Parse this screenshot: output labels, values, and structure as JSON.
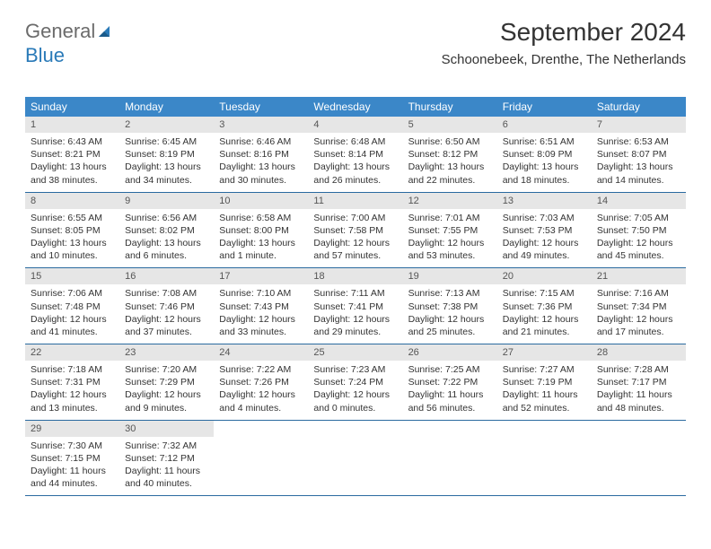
{
  "logo": {
    "text1": "General",
    "text2": "Blue"
  },
  "header": {
    "month_title": "September 2024",
    "location": "Schoonebeek, Drenthe, The Netherlands"
  },
  "colors": {
    "header_bg": "#3b87c8",
    "day_num_bg": "#e6e6e6",
    "row_border": "#2a6aa0",
    "logo_gray": "#6b6b6b",
    "logo_blue": "#2a7ab8"
  },
  "day_headers": [
    "Sunday",
    "Monday",
    "Tuesday",
    "Wednesday",
    "Thursday",
    "Friday",
    "Saturday"
  ],
  "weeks": [
    {
      "nums": [
        "1",
        "2",
        "3",
        "4",
        "5",
        "6",
        "7"
      ],
      "cells": [
        {
          "sunrise": "Sunrise: 6:43 AM",
          "sunset": "Sunset: 8:21 PM",
          "day1": "Daylight: 13 hours",
          "day2": "and 38 minutes."
        },
        {
          "sunrise": "Sunrise: 6:45 AM",
          "sunset": "Sunset: 8:19 PM",
          "day1": "Daylight: 13 hours",
          "day2": "and 34 minutes."
        },
        {
          "sunrise": "Sunrise: 6:46 AM",
          "sunset": "Sunset: 8:16 PM",
          "day1": "Daylight: 13 hours",
          "day2": "and 30 minutes."
        },
        {
          "sunrise": "Sunrise: 6:48 AM",
          "sunset": "Sunset: 8:14 PM",
          "day1": "Daylight: 13 hours",
          "day2": "and 26 minutes."
        },
        {
          "sunrise": "Sunrise: 6:50 AM",
          "sunset": "Sunset: 8:12 PM",
          "day1": "Daylight: 13 hours",
          "day2": "and 22 minutes."
        },
        {
          "sunrise": "Sunrise: 6:51 AM",
          "sunset": "Sunset: 8:09 PM",
          "day1": "Daylight: 13 hours",
          "day2": "and 18 minutes."
        },
        {
          "sunrise": "Sunrise: 6:53 AM",
          "sunset": "Sunset: 8:07 PM",
          "day1": "Daylight: 13 hours",
          "day2": "and 14 minutes."
        }
      ]
    },
    {
      "nums": [
        "8",
        "9",
        "10",
        "11",
        "12",
        "13",
        "14"
      ],
      "cells": [
        {
          "sunrise": "Sunrise: 6:55 AM",
          "sunset": "Sunset: 8:05 PM",
          "day1": "Daylight: 13 hours",
          "day2": "and 10 minutes."
        },
        {
          "sunrise": "Sunrise: 6:56 AM",
          "sunset": "Sunset: 8:02 PM",
          "day1": "Daylight: 13 hours",
          "day2": "and 6 minutes."
        },
        {
          "sunrise": "Sunrise: 6:58 AM",
          "sunset": "Sunset: 8:00 PM",
          "day1": "Daylight: 13 hours",
          "day2": "and 1 minute."
        },
        {
          "sunrise": "Sunrise: 7:00 AM",
          "sunset": "Sunset: 7:58 PM",
          "day1": "Daylight: 12 hours",
          "day2": "and 57 minutes."
        },
        {
          "sunrise": "Sunrise: 7:01 AM",
          "sunset": "Sunset: 7:55 PM",
          "day1": "Daylight: 12 hours",
          "day2": "and 53 minutes."
        },
        {
          "sunrise": "Sunrise: 7:03 AM",
          "sunset": "Sunset: 7:53 PM",
          "day1": "Daylight: 12 hours",
          "day2": "and 49 minutes."
        },
        {
          "sunrise": "Sunrise: 7:05 AM",
          "sunset": "Sunset: 7:50 PM",
          "day1": "Daylight: 12 hours",
          "day2": "and 45 minutes."
        }
      ]
    },
    {
      "nums": [
        "15",
        "16",
        "17",
        "18",
        "19",
        "20",
        "21"
      ],
      "cells": [
        {
          "sunrise": "Sunrise: 7:06 AM",
          "sunset": "Sunset: 7:48 PM",
          "day1": "Daylight: 12 hours",
          "day2": "and 41 minutes."
        },
        {
          "sunrise": "Sunrise: 7:08 AM",
          "sunset": "Sunset: 7:46 PM",
          "day1": "Daylight: 12 hours",
          "day2": "and 37 minutes."
        },
        {
          "sunrise": "Sunrise: 7:10 AM",
          "sunset": "Sunset: 7:43 PM",
          "day1": "Daylight: 12 hours",
          "day2": "and 33 minutes."
        },
        {
          "sunrise": "Sunrise: 7:11 AM",
          "sunset": "Sunset: 7:41 PM",
          "day1": "Daylight: 12 hours",
          "day2": "and 29 minutes."
        },
        {
          "sunrise": "Sunrise: 7:13 AM",
          "sunset": "Sunset: 7:38 PM",
          "day1": "Daylight: 12 hours",
          "day2": "and 25 minutes."
        },
        {
          "sunrise": "Sunrise: 7:15 AM",
          "sunset": "Sunset: 7:36 PM",
          "day1": "Daylight: 12 hours",
          "day2": "and 21 minutes."
        },
        {
          "sunrise": "Sunrise: 7:16 AM",
          "sunset": "Sunset: 7:34 PM",
          "day1": "Daylight: 12 hours",
          "day2": "and 17 minutes."
        }
      ]
    },
    {
      "nums": [
        "22",
        "23",
        "24",
        "25",
        "26",
        "27",
        "28"
      ],
      "cells": [
        {
          "sunrise": "Sunrise: 7:18 AM",
          "sunset": "Sunset: 7:31 PM",
          "day1": "Daylight: 12 hours",
          "day2": "and 13 minutes."
        },
        {
          "sunrise": "Sunrise: 7:20 AM",
          "sunset": "Sunset: 7:29 PM",
          "day1": "Daylight: 12 hours",
          "day2": "and 9 minutes."
        },
        {
          "sunrise": "Sunrise: 7:22 AM",
          "sunset": "Sunset: 7:26 PM",
          "day1": "Daylight: 12 hours",
          "day2": "and 4 minutes."
        },
        {
          "sunrise": "Sunrise: 7:23 AM",
          "sunset": "Sunset: 7:24 PM",
          "day1": "Daylight: 12 hours",
          "day2": "and 0 minutes."
        },
        {
          "sunrise": "Sunrise: 7:25 AM",
          "sunset": "Sunset: 7:22 PM",
          "day1": "Daylight: 11 hours",
          "day2": "and 56 minutes."
        },
        {
          "sunrise": "Sunrise: 7:27 AM",
          "sunset": "Sunset: 7:19 PM",
          "day1": "Daylight: 11 hours",
          "day2": "and 52 minutes."
        },
        {
          "sunrise": "Sunrise: 7:28 AM",
          "sunset": "Sunset: 7:17 PM",
          "day1": "Daylight: 11 hours",
          "day2": "and 48 minutes."
        }
      ]
    },
    {
      "nums": [
        "29",
        "30",
        "",
        "",
        "",
        "",
        ""
      ],
      "cells": [
        {
          "sunrise": "Sunrise: 7:30 AM",
          "sunset": "Sunset: 7:15 PM",
          "day1": "Daylight: 11 hours",
          "day2": "and 44 minutes."
        },
        {
          "sunrise": "Sunrise: 7:32 AM",
          "sunset": "Sunset: 7:12 PM",
          "day1": "Daylight: 11 hours",
          "day2": "and 40 minutes."
        },
        null,
        null,
        null,
        null,
        null
      ]
    }
  ]
}
